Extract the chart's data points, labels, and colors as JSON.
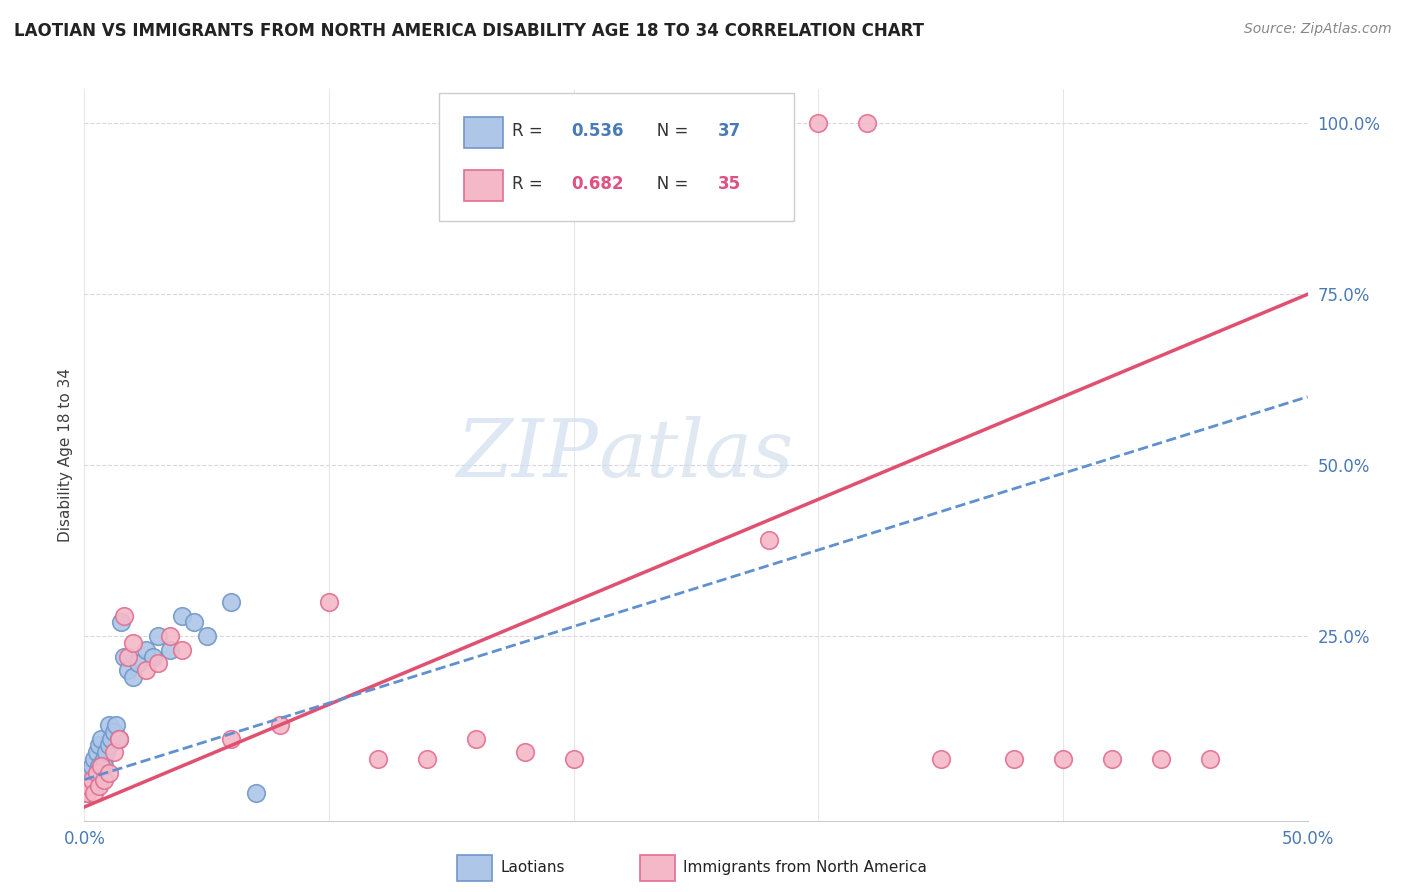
{
  "title": "LAOTIAN VS IMMIGRANTS FROM NORTH AMERICA DISABILITY AGE 18 TO 34 CORRELATION CHART",
  "source": "Source: ZipAtlas.com",
  "ylabel": "Disability Age 18 to 34",
  "xlim": [
    0.0,
    0.5
  ],
  "ylim": [
    -0.02,
    1.05
  ],
  "xtick_labels": [
    "0.0%",
    "",
    "",
    "",
    "",
    "50.0%"
  ],
  "xtick_vals": [
    0.0,
    0.1,
    0.2,
    0.3,
    0.4,
    0.5
  ],
  "ytick_labels": [
    "25.0%",
    "50.0%",
    "75.0%",
    "100.0%"
  ],
  "ytick_vals": [
    0.25,
    0.5,
    0.75,
    1.0
  ],
  "laotian_color": "#aec6e8",
  "immigrant_color": "#f5b8c8",
  "laotian_edge": "#7098c8",
  "immigrant_edge": "#e07090",
  "trend_blue_color": "#6090d0",
  "trend_pink_color": "#e05070",
  "R_laotian": 0.536,
  "N_laotian": 37,
  "R_immigrant": 0.682,
  "N_immigrant": 35,
  "watermark_zip": "ZIP",
  "watermark_atlas": "atlas",
  "legend_label_1": "Laotians",
  "legend_label_2": "Immigrants from North America",
  "laotian_x": [
    0.001,
    0.001,
    0.002,
    0.002,
    0.003,
    0.003,
    0.004,
    0.004,
    0.005,
    0.005,
    0.006,
    0.006,
    0.007,
    0.007,
    0.008,
    0.008,
    0.009,
    0.01,
    0.01,
    0.011,
    0.012,
    0.013,
    0.014,
    0.015,
    0.016,
    0.018,
    0.02,
    0.022,
    0.025,
    0.028,
    0.03,
    0.035,
    0.04,
    0.045,
    0.05,
    0.06,
    0.07
  ],
  "laotian_y": [
    0.02,
    0.03,
    0.04,
    0.05,
    0.03,
    0.06,
    0.04,
    0.07,
    0.05,
    0.08,
    0.06,
    0.09,
    0.05,
    0.1,
    0.07,
    0.06,
    0.08,
    0.09,
    0.12,
    0.1,
    0.11,
    0.12,
    0.1,
    0.27,
    0.22,
    0.2,
    0.19,
    0.21,
    0.23,
    0.22,
    0.25,
    0.23,
    0.28,
    0.27,
    0.25,
    0.3,
    0.02
  ],
  "immigrant_x": [
    0.001,
    0.002,
    0.003,
    0.004,
    0.005,
    0.006,
    0.007,
    0.008,
    0.01,
    0.012,
    0.014,
    0.016,
    0.018,
    0.02,
    0.025,
    0.03,
    0.035,
    0.04,
    0.06,
    0.08,
    0.1,
    0.12,
    0.14,
    0.16,
    0.18,
    0.2,
    0.28,
    0.3,
    0.32,
    0.35,
    0.38,
    0.4,
    0.42,
    0.44,
    0.46
  ],
  "immigrant_y": [
    0.02,
    0.03,
    0.04,
    0.02,
    0.05,
    0.03,
    0.06,
    0.04,
    0.05,
    0.08,
    0.1,
    0.28,
    0.22,
    0.24,
    0.2,
    0.21,
    0.25,
    0.23,
    0.1,
    0.12,
    0.3,
    0.07,
    0.07,
    0.1,
    0.08,
    0.07,
    0.39,
    1.0,
    1.0,
    0.07,
    0.07,
    0.07,
    0.07,
    0.07,
    0.07
  ],
  "trend_laotian_x0": 0.0,
  "trend_laotian_y0": 0.04,
  "trend_laotian_x1": 0.5,
  "trend_laotian_y1": 0.6,
  "trend_immigrant_x0": 0.0,
  "trend_immigrant_y0": 0.0,
  "trend_immigrant_x1": 0.5,
  "trend_immigrant_y1": 0.75
}
